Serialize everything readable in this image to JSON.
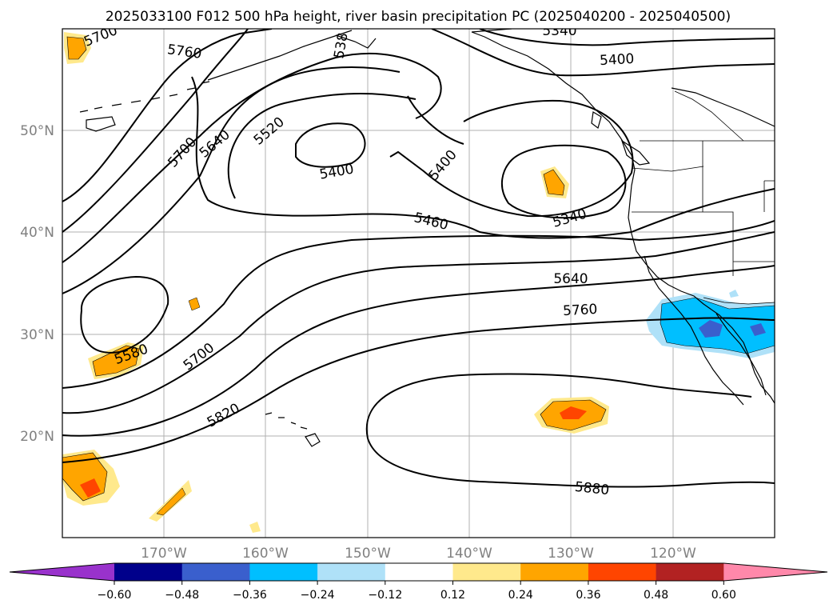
{
  "title": "2025033100 F012 500 hPa height, river basin precipitation PC (2025040200 - 2025040500)",
  "axes": {
    "lat_labels": [
      "50°N",
      "40°N",
      "30°N",
      "20°N"
    ],
    "lon_labels": [
      "170°W",
      "160°W",
      "150°W",
      "140°W",
      "130°W",
      "120°W"
    ]
  },
  "colorbar": {
    "ticks": [
      "−0.60",
      "−0.48",
      "−0.36",
      "−0.24",
      "−0.12",
      "0.12",
      "0.24",
      "0.36",
      "0.48",
      "0.60"
    ],
    "colors": [
      "#9932cc",
      "#00008b",
      "#3a5fcd",
      "#00bfff",
      "#afe1f8",
      "#ffffff",
      "#ffe98c",
      "#ffa500",
      "#ff4500",
      "#b22222",
      "#ff88aa"
    ]
  },
  "contour_labels": {
    "c5700a": "5700",
    "c5760a": "5760",
    "c5340a": "5340",
    "c5400a": "5400",
    "c5700b": "5700",
    "c5640": "5640",
    "c5520": "5520",
    "c5400b": "5400",
    "c5400c": "5400",
    "c5460": "5460",
    "c5340b": "5340",
    "c5640b": "5640",
    "c5760b": "5760",
    "c5580": "5580",
    "c5700c": "5700",
    "c5820": "5820",
    "c5880": "5880",
    "c538": "538"
  }
}
